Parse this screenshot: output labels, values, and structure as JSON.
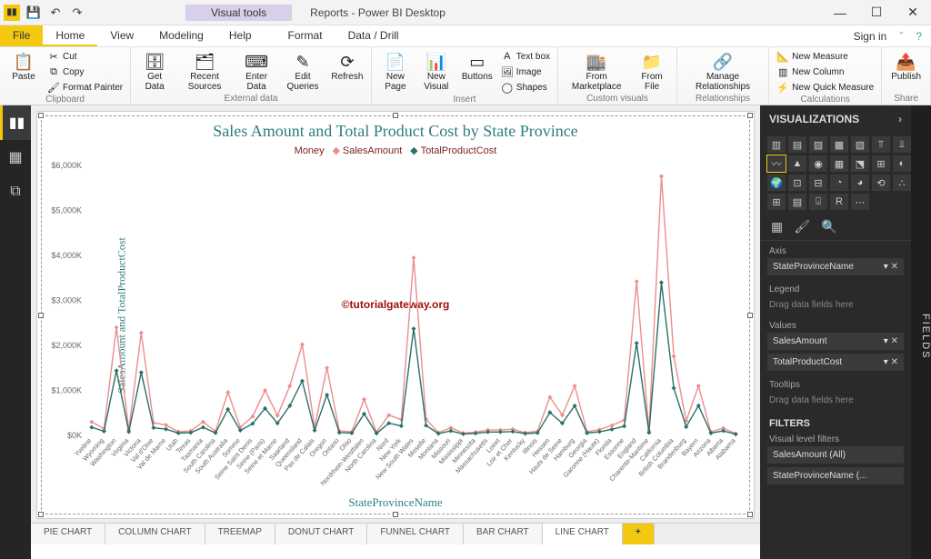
{
  "titlebar": {
    "app_title": "Reports - Power BI Desktop",
    "visual_tools": "Visual tools",
    "sign_in": "Sign in"
  },
  "menu": {
    "file": "File",
    "tabs": [
      "Home",
      "View",
      "Modeling",
      "Help",
      "Format",
      "Data / Drill"
    ],
    "active": "Home"
  },
  "ribbon": {
    "clipboard": {
      "label": "Clipboard",
      "paste": "Paste",
      "cut": "Cut",
      "copy": "Copy",
      "format_painter": "Format Painter"
    },
    "external": {
      "label": "External data",
      "get_data": "Get\nData",
      "recent": "Recent\nSources",
      "enter": "Enter\nData",
      "edit": "Edit\nQueries",
      "refresh": "Refresh"
    },
    "insert": {
      "label": "Insert",
      "new_page": "New\nPage",
      "new_visual": "New\nVisual",
      "buttons": "Buttons",
      "textbox": "Text box",
      "image": "Image",
      "shapes": "Shapes"
    },
    "custom": {
      "label": "Custom visuals",
      "marketplace": "From\nMarketplace",
      "file": "From\nFile"
    },
    "relationships": {
      "label": "Relationships",
      "manage": "Manage\nRelationships"
    },
    "calc": {
      "label": "Calculations",
      "new_measure": "New Measure",
      "new_column": "New Column",
      "new_quick": "New Quick Measure"
    },
    "share": {
      "label": "Share",
      "publish": "Publish"
    }
  },
  "chart": {
    "type": "line",
    "title": "Sales Amount and Total Product Cost by State Province",
    "legend_title": "Money",
    "series1_name": "SalesAmount",
    "series2_name": "TotalProductCost",
    "x_axis_label": "StateProvinceName",
    "y_axis_label": "SalesAmount and TotalProductCost",
    "watermark": "©tutorialgateway.org",
    "colors": {
      "series1": "#ed8d8d",
      "series2": "#2a7066",
      "grid": "#fefefe",
      "tick": "#666666",
      "title": "#2e7d7d"
    },
    "y_ticks": [
      "$0K",
      "$1,000K",
      "$2,000K",
      "$3,000K",
      "$4,000K",
      "$5,000K",
      "$6,000K"
    ],
    "y_max": 6000,
    "categories": [
      "Yveline",
      "Wyoming",
      "Washington",
      "Virginia",
      "Victoria",
      "Val d'Oise",
      "Val de Marne",
      "Utah",
      "Texas",
      "Tasmania",
      "South Carolina",
      "South Australia",
      "Somme",
      "Seine Saint Denis",
      "Seine (Paris)",
      "Seine et Marne",
      "Saarland",
      "Queensland",
      "Pas de Calais",
      "Oregon",
      "Ontario",
      "Ohio",
      "Nordrhein-Westfalen",
      "North Carolina",
      "Nord",
      "New York",
      "New South Wales",
      "Moselle",
      "Montana",
      "Missouri",
      "Mississippi",
      "Minnesota",
      "Massachusetts",
      "Loiret",
      "Loir et Cher",
      "Kentucky",
      "Illinois",
      "Hessen",
      "Hauts de Seine",
      "Hamburg",
      "Georgia",
      "Garonne (Haute)",
      "Florida",
      "Essonne",
      "England",
      "Charente-Maritime",
      "California",
      "British Columbia",
      "Brandenburg",
      "Bayern",
      "Arizona",
      "Alberta",
      "Alabama"
    ],
    "series1": [
      300,
      150,
      2400,
      120,
      2280,
      280,
      230,
      80,
      100,
      300,
      90,
      960,
      180,
      420,
      1000,
      440,
      1100,
      2020,
      180,
      1500,
      100,
      80,
      800,
      70,
      450,
      350,
      3950,
      360,
      60,
      170,
      50,
      70,
      120,
      120,
      140,
      60,
      90,
      850,
      450,
      1100,
      80,
      130,
      220,
      340,
      3420,
      100,
      5760,
      1760,
      320,
      1100,
      80,
      160,
      40
    ],
    "series2": [
      180,
      90,
      1440,
      80,
      1400,
      170,
      140,
      50,
      60,
      180,
      55,
      580,
      110,
      260,
      600,
      270,
      660,
      1210,
      110,
      900,
      60,
      50,
      480,
      45,
      270,
      210,
      2370,
      220,
      40,
      100,
      30,
      45,
      75,
      75,
      85,
      40,
      55,
      510,
      270,
      660,
      50,
      80,
      135,
      205,
      2050,
      60,
      3400,
      1050,
      190,
      660,
      50,
      100,
      25
    ]
  },
  "pages": [
    "PIE CHART",
    "COLUMN CHART",
    "TREEMAP",
    "DONUT CHART",
    "FUNNEL CHART",
    "BAR CHART",
    "LINE CHART"
  ],
  "active_page": "LINE CHART",
  "viz_pane": {
    "header": "VISUALIZATIONS",
    "axis_label": "Axis",
    "axis_field": "StateProvinceName",
    "legend_label": "Legend",
    "legend_empty": "Drag data fields here",
    "values_label": "Values",
    "values_fields": [
      "SalesAmount",
      "TotalProductCost"
    ],
    "tooltips_label": "Tooltips",
    "tooltips_empty": "Drag data fields here",
    "filters_header": "FILTERS",
    "filters_sub": "Visual level filters",
    "filter1": "SalesAmount (All)",
    "filter2": "StateProvinceName (..."
  },
  "fields_tab": "FIELDS"
}
